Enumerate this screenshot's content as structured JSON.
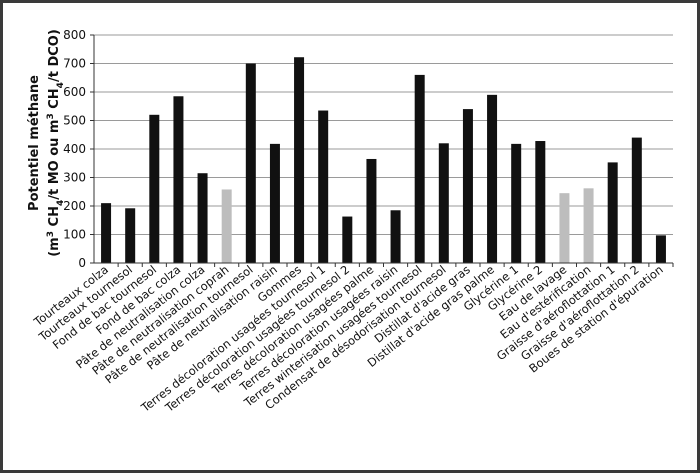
{
  "chart_data": {
    "type": "bar",
    "ylabel": "Potentiel méthane",
    "ylabel_line2": {
      "pre": "(m",
      "sup3": "3",
      "a": " CH",
      "sub4": "4",
      "b": "/t MO ou m",
      "sup3b": "3",
      "c": " CH",
      "sub4b": "4",
      "d": "/t DCO)"
    },
    "ylim": [
      0,
      800
    ],
    "yticks": [
      "0",
      "100",
      "200",
      "300",
      "400",
      "500",
      "600",
      "700",
      "800"
    ],
    "grid": true,
    "colors": {
      "dark": "#111111",
      "light": "#bdbdbd",
      "grid": "#9a9a9a"
    },
    "categories": [
      "Tourteaux colza",
      "Tourteaux tournesol",
      "Fond de bac tournesol",
      "Fond de bac colza",
      "Pâte de neutralisation colza",
      "Pâte de neutralisation coprah",
      "Pâte de neutralisation tournesol",
      "Pâte de neutralisation raisin",
      "Gommes",
      "Terres décoloration usagées tournesol 1",
      "Terres décoloration usagées tournesol 2",
      "Terres décoloration usagées palme",
      "Terres décoloration usagées raisin",
      "Terres winterisation usagées tournesol",
      "Condensat de désodorisation tournesol",
      "Distillat d'acide gras",
      "Distillat d'acide gras palme",
      "Glycérine 1",
      "Glycérine 2",
      "Eau de lavage",
      "Eau d'estérification",
      "Graisse d'aéroflottation 1",
      "Graisse d'aéroflottation 2",
      "Boues de station d'épuration"
    ],
    "values": [
      210,
      192,
      520,
      585,
      315,
      258,
      700,
      418,
      722,
      535,
      163,
      365,
      185,
      660,
      420,
      540,
      590,
      418,
      428,
      245,
      262,
      353,
      440,
      97
    ],
    "shade": [
      "dark",
      "dark",
      "dark",
      "dark",
      "dark",
      "light",
      "dark",
      "dark",
      "dark",
      "dark",
      "dark",
      "dark",
      "dark",
      "dark",
      "dark",
      "dark",
      "dark",
      "dark",
      "dark",
      "light",
      "light",
      "dark",
      "dark",
      "dark"
    ]
  }
}
